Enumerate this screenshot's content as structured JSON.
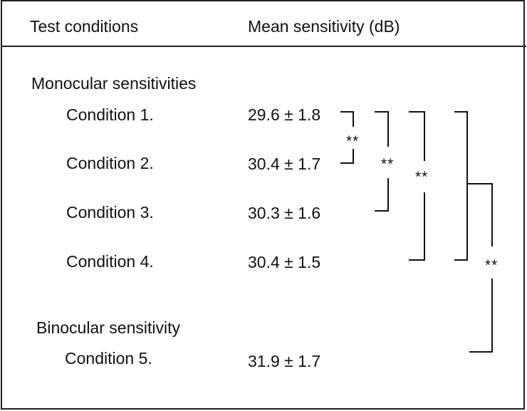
{
  "table": {
    "header": {
      "col1": "Test conditions",
      "col2": "Mean sensitivity (dB)"
    },
    "sections": [
      {
        "title": "Monocular sensitivities",
        "rows": [
          {
            "condition": "Condition 1.",
            "value": "29.6 ± 1.8"
          },
          {
            "condition": "Condition 2.",
            "value": "30.4 ± 1.7"
          },
          {
            "condition": "Condition 3.",
            "value": "30.3 ± 1.6"
          },
          {
            "condition": "Condition 4.",
            "value": "30.4 ± 1.5"
          }
        ]
      },
      {
        "title": "Binocular sensitivity",
        "rows": [
          {
            "condition": "Condition 5.",
            "value": "31.9 ± 1.7"
          }
        ]
      }
    ],
    "comparisons": [
      {
        "between": "Condition 1. vs Condition 2.",
        "significance": "**"
      },
      {
        "between": "Condition 1. vs Condition 3.",
        "significance": "**"
      },
      {
        "between": "Condition 1. vs Condition 4.",
        "significance": "**"
      },
      {
        "between": "Conditions 1.–4. vs Condition 5.",
        "significance": "**"
      }
    ]
  }
}
